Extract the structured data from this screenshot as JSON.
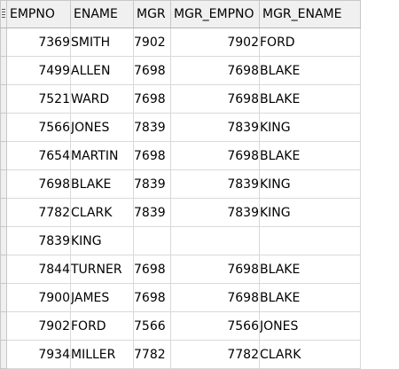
{
  "grid": {
    "columns": [
      "EMPNO",
      "ENAME",
      "MGR",
      "MGR_EMPNO",
      "MGR_ENAME"
    ],
    "rows": [
      [
        "7369",
        "SMITH",
        "7902",
        "7902",
        "FORD"
      ],
      [
        "7499",
        "ALLEN",
        "7698",
        "7698",
        "BLAKE"
      ],
      [
        "7521",
        "WARD",
        "7698",
        "7698",
        "BLAKE"
      ],
      [
        "7566",
        "JONES",
        "7839",
        "7839",
        "KING"
      ],
      [
        "7654",
        "MARTIN",
        "7698",
        "7698",
        "BLAKE"
      ],
      [
        "7698",
        "BLAKE",
        "7839",
        "7839",
        "KING"
      ],
      [
        "7782",
        "CLARK",
        "7839",
        "7839",
        "KING"
      ],
      [
        "7839",
        "KING",
        "",
        "",
        ""
      ],
      [
        "7844",
        "TURNER",
        "7698",
        "7698",
        "BLAKE"
      ],
      [
        "7900",
        "JAMES",
        "7698",
        "7698",
        "BLAKE"
      ],
      [
        "7902",
        "FORD",
        "7566",
        "7566",
        "JONES"
      ],
      [
        "7934",
        "MILLER",
        "7782",
        "7782",
        "CLARK"
      ]
    ]
  }
}
